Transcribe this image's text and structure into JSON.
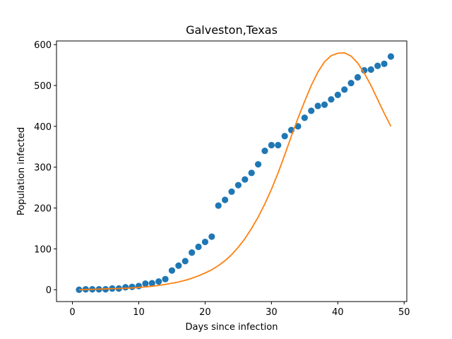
{
  "chart_data": {
    "type": "scatter",
    "title": "Galveston,Texas",
    "xlabel": "Days since infection",
    "ylabel": "Population infected",
    "xlim": [
      -2.4,
      50.4
    ],
    "ylim": [
      -29,
      609
    ],
    "xticks": [
      0,
      10,
      20,
      30,
      40,
      50
    ],
    "yticks": [
      0,
      100,
      200,
      300,
      400,
      500,
      600
    ],
    "grid": false,
    "colors": {
      "observed": "#1f77b4",
      "model": "#ff7f0e"
    },
    "series": [
      {
        "kind": "scatter",
        "x": [
          1,
          2,
          3,
          4,
          5,
          6,
          7,
          8,
          9,
          10,
          11,
          12,
          13,
          14,
          15,
          16,
          17,
          18,
          19,
          20,
          21,
          22,
          23,
          24,
          25,
          26,
          27,
          28,
          29,
          30,
          31,
          32,
          33,
          34,
          35,
          36,
          37,
          38,
          39,
          40,
          41,
          42,
          43,
          44,
          45,
          46,
          47,
          48
        ],
        "y": [
          0,
          1,
          1,
          1,
          1,
          3,
          3,
          6,
          7,
          9,
          15,
          16,
          20,
          26,
          47,
          59,
          70,
          91,
          105,
          117,
          130,
          206,
          220,
          240,
          256,
          270,
          286,
          307,
          340,
          354,
          354,
          376,
          391,
          400,
          421,
          438,
          450,
          453,
          466,
          477,
          490,
          506,
          520,
          537,
          539,
          548,
          553,
          571
        ]
      },
      {
        "kind": "line",
        "x": [
          1,
          2,
          3,
          4,
          5,
          6,
          7,
          8,
          9,
          10,
          11,
          12,
          13,
          14,
          15,
          16,
          17,
          18,
          19,
          20,
          21,
          22,
          23,
          24,
          25,
          26,
          27,
          28,
          29,
          30,
          31,
          32,
          33,
          34,
          35,
          36,
          37,
          38,
          39,
          40,
          41,
          42,
          43,
          44,
          45,
          46,
          47,
          48
        ],
        "y": [
          0,
          0.5,
          1,
          1.5,
          2,
          2.5,
          3,
          3.5,
          4.5,
          5.5,
          7,
          8.5,
          10.5,
          13,
          16,
          19,
          23,
          28,
          34,
          41,
          49,
          59,
          71,
          86,
          104,
          125,
          150,
          178,
          210,
          246,
          286,
          330,
          376,
          420,
          461,
          500,
          533,
          558,
          573,
          579,
          580,
          572,
          555,
          530,
          500,
          466,
          432,
          400
        ]
      }
    ]
  }
}
